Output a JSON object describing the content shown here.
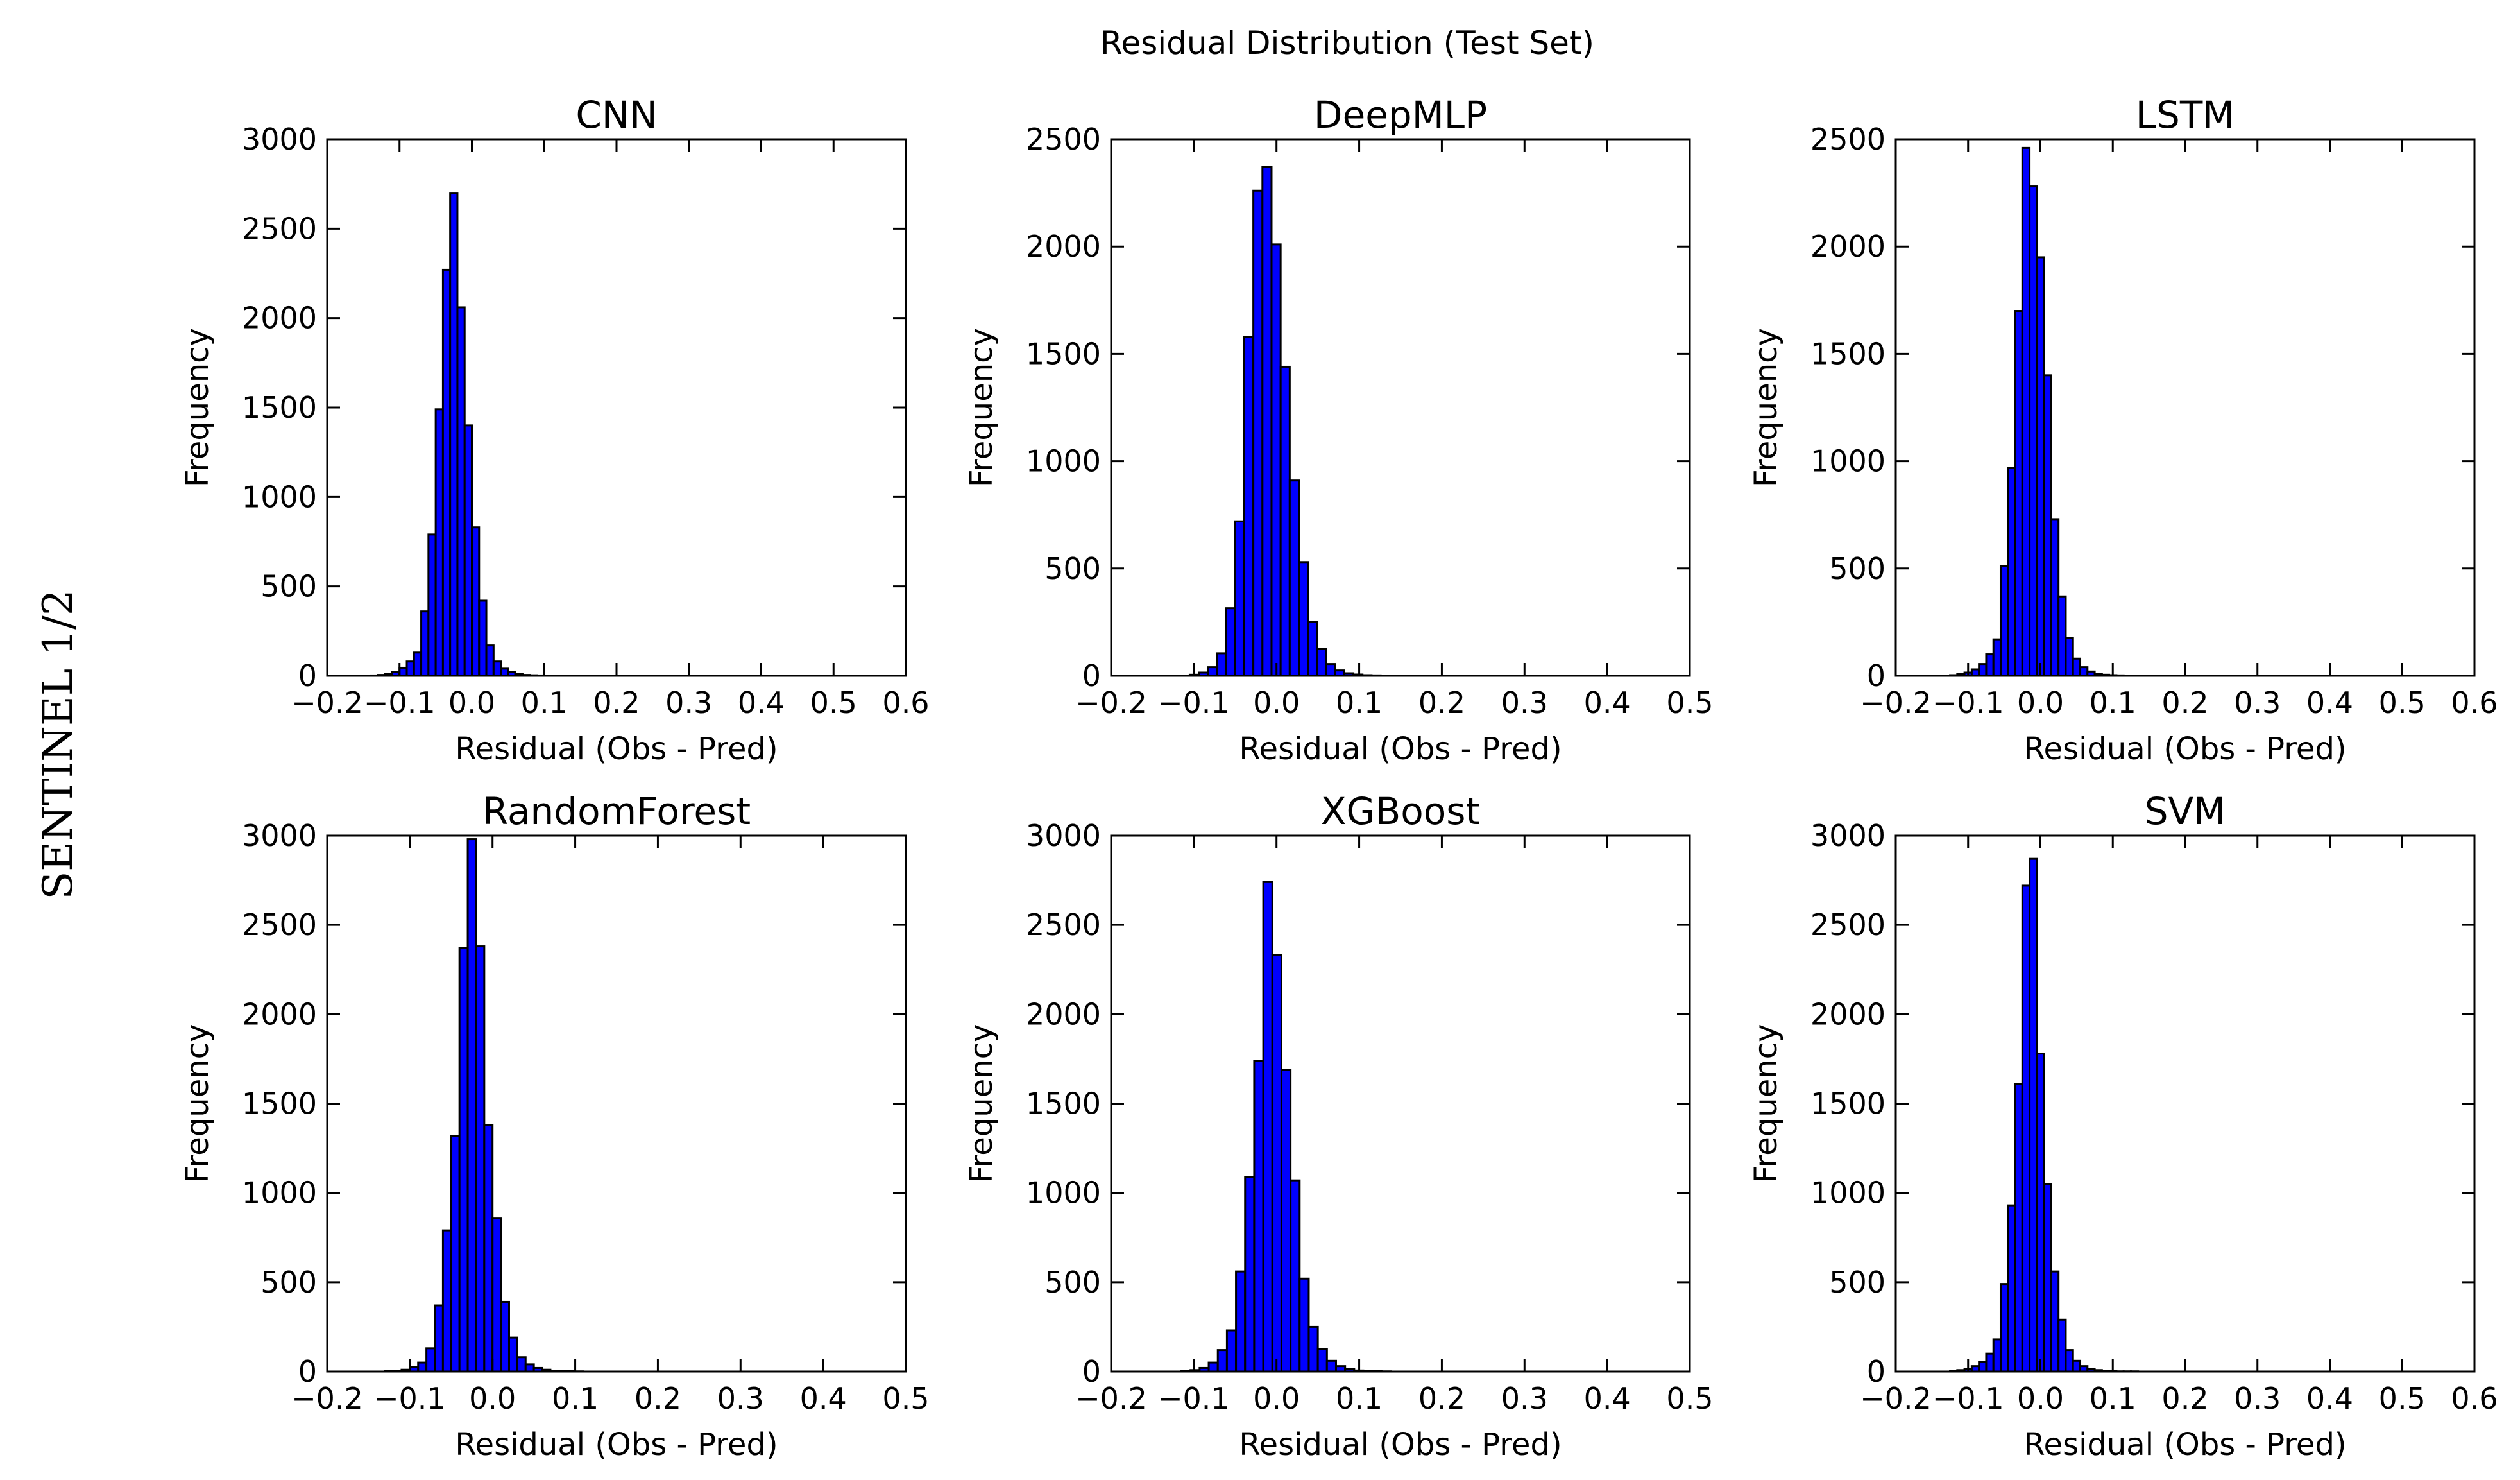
{
  "figure": {
    "suptitle": "Residual Distribution (Test Set)",
    "side_label": "SENTINEL 1/2",
    "bar_color": "#0000ff",
    "bar_edge_color": "#000000"
  },
  "chart_data": [
    {
      "type": "bar",
      "title": "CNN",
      "xlabel": "Residual (Obs - Pred)",
      "ylabel": "Frequency",
      "xlim": [
        -0.2,
        0.6
      ],
      "ylim": [
        0,
        3000
      ],
      "xticks": [
        "−0.2",
        "−0.1",
        "0.0",
        "0.1",
        "0.2",
        "0.3",
        "0.4",
        "0.5",
        "0.6"
      ],
      "yticks": [
        "0",
        "500",
        "1000",
        "1500",
        "2000",
        "2500",
        "3000"
      ],
      "bin_start": -0.14,
      "bin_width": 0.01,
      "values": [
        2,
        5,
        10,
        20,
        45,
        80,
        130,
        360,
        790,
        1490,
        2270,
        2700,
        2060,
        1400,
        830,
        420,
        170,
        80,
        40,
        20,
        10,
        5,
        3,
        2,
        1,
        1,
        1
      ]
    },
    {
      "type": "bar",
      "title": "DeepMLP",
      "xlabel": "Residual (Obs - Pred)",
      "ylabel": "Frequency",
      "xlim": [
        -0.2,
        0.5
      ],
      "ylim": [
        0,
        2500
      ],
      "xticks": [
        "−0.2",
        "−0.1",
        "0.0",
        "0.1",
        "0.2",
        "0.3",
        "0.4",
        "0.5"
      ],
      "yticks": [
        "0",
        "500",
        "1000",
        "1500",
        "2000",
        "2500"
      ],
      "bin_start": -0.105,
      "bin_width": 0.011,
      "values": [
        5,
        15,
        40,
        105,
        315,
        720,
        1580,
        2260,
        2370,
        2010,
        1440,
        910,
        530,
        250,
        125,
        55,
        25,
        12,
        6,
        3,
        2,
        1
      ]
    },
    {
      "type": "bar",
      "title": "LSTM",
      "xlabel": "Residual (Obs - Pred)",
      "ylabel": "Frequency",
      "xlim": [
        -0.2,
        0.6
      ],
      "ylim": [
        0,
        2500
      ],
      "xticks": [
        "−0.2",
        "−0.1",
        "0.0",
        "0.1",
        "0.2",
        "0.3",
        "0.4",
        "0.5",
        "0.6"
      ],
      "yticks": [
        "0",
        "500",
        "1000",
        "1500",
        "2000",
        "2500"
      ],
      "bin_start": -0.125,
      "bin_width": 0.01,
      "values": [
        3,
        8,
        15,
        30,
        55,
        100,
        170,
        510,
        970,
        1700,
        2460,
        2280,
        1950,
        1400,
        730,
        370,
        175,
        80,
        40,
        20,
        10,
        5,
        3,
        2,
        1,
        1
      ]
    },
    {
      "type": "bar",
      "title": "RandomForest",
      "xlabel": "Residual (Obs - Pred)",
      "ylabel": "Frequency",
      "xlim": [
        -0.2,
        0.5
      ],
      "ylim": [
        0,
        3000
      ],
      "xticks": [
        "−0.2",
        "−0.1",
        "0.0",
        "0.1",
        "0.2",
        "0.3",
        "0.4",
        "0.5"
      ],
      "yticks": [
        "0",
        "500",
        "1000",
        "1500",
        "2000",
        "2500",
        "3000"
      ],
      "bin_start": -0.13,
      "bin_width": 0.01,
      "values": [
        2,
        5,
        10,
        25,
        50,
        130,
        370,
        790,
        1320,
        2370,
        2980,
        2380,
        1380,
        860,
        390,
        190,
        80,
        40,
        20,
        10,
        5,
        3,
        2,
        1
      ]
    },
    {
      "type": "bar",
      "title": "XGBoost",
      "xlabel": "Residual (Obs - Pred)",
      "ylabel": "Frequency",
      "xlim": [
        -0.2,
        0.5
      ],
      "ylim": [
        0,
        3000
      ],
      "xticks": [
        "−0.2",
        "−0.1",
        "0.0",
        "0.1",
        "0.2",
        "0.3",
        "0.4",
        "0.5"
      ],
      "yticks": [
        "0",
        "500",
        "1000",
        "1500",
        "2000",
        "2500",
        "3000"
      ],
      "bin_start": -0.115,
      "bin_width": 0.011,
      "values": [
        2,
        8,
        20,
        50,
        120,
        230,
        560,
        1090,
        1740,
        2740,
        2330,
        1690,
        1070,
        520,
        250,
        125,
        60,
        30,
        14,
        6,
        3,
        2,
        1
      ]
    },
    {
      "type": "bar",
      "title": "SVM",
      "xlabel": "Residual (Obs - Pred)",
      "ylabel": "Frequency",
      "xlim": [
        -0.2,
        0.6
      ],
      "ylim": [
        0,
        3000
      ],
      "xticks": [
        "−0.2",
        "−0.1",
        "0.0",
        "0.1",
        "0.2",
        "0.3",
        "0.4",
        "0.5",
        "0.6"
      ],
      "yticks": [
        "0",
        "500",
        "1000",
        "1500",
        "2000",
        "2500",
        "3000"
      ],
      "bin_start": -0.125,
      "bin_width": 0.01,
      "values": [
        3,
        8,
        15,
        30,
        55,
        100,
        180,
        490,
        930,
        1610,
        2720,
        2870,
        1780,
        1050,
        560,
        290,
        120,
        60,
        30,
        15,
        8,
        4,
        2,
        1,
        1,
        1
      ]
    }
  ]
}
